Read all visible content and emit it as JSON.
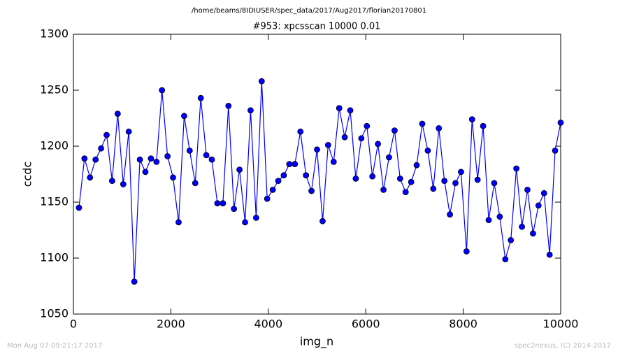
{
  "chart_data": {
    "type": "line",
    "suptitle": "/home/beams/8IDIUSER/spec_data/2017/Aug2017/florian20170801",
    "title": "#953: xpcsscan 10000 0.01",
    "xlabel": "img_n",
    "ylabel": "ccdc",
    "footer_left": "Mon Aug 07 09:21:17 2017",
    "footer_right": "spec2nexus, (C) 2014-2017",
    "x": [
      114,
      227,
      341,
      455,
      568,
      682,
      795,
      909,
      1023,
      1136,
      1250,
      1364,
      1477,
      1591,
      1705,
      1818,
      1932,
      2045,
      2159,
      2273,
      2386,
      2500,
      2614,
      2727,
      2841,
      2955,
      3068,
      3182,
      3295,
      3409,
      3523,
      3636,
      3750,
      3864,
      3977,
      4091,
      4205,
      4318,
      4432,
      4545,
      4659,
      4773,
      4886,
      5000,
      5114,
      5227,
      5341,
      5455,
      5568,
      5682,
      5795,
      5909,
      6023,
      6136,
      6250,
      6364,
      6477,
      6591,
      6705,
      6818,
      6932,
      7045,
      7159,
      7273,
      7386,
      7500,
      7614,
      7727,
      7841,
      7955,
      8068,
      8182,
      8295,
      8409,
      8523,
      8636,
      8750,
      8864,
      8977,
      9091,
      9205,
      9318,
      9432,
      9545,
      9659,
      9773,
      9886,
      10000
    ],
    "series": [
      {
        "name": "ccdc",
        "color": "#0000ff",
        "values": [
          1145,
          1189,
          1172,
          1188,
          1198,
          1210,
          1169,
          1229,
          1166,
          1213,
          1079,
          1188,
          1177,
          1189,
          1186,
          1250,
          1191,
          1172,
          1132,
          1227,
          1196,
          1167,
          1243,
          1192,
          1188,
          1149,
          1149,
          1236,
          1144,
          1179,
          1132,
          1232,
          1136,
          1258,
          1153,
          1161,
          1169,
          1174,
          1184,
          1184,
          1213,
          1174,
          1160,
          1197,
          1133,
          1201,
          1186,
          1234,
          1208,
          1232,
          1171,
          1207,
          1218,
          1173,
          1202,
          1161,
          1190,
          1214,
          1171,
          1159,
          1168,
          1183,
          1220,
          1196,
          1162,
          1216,
          1169,
          1139,
          1167,
          1177,
          1106,
          1224,
          1170,
          1218,
          1134,
          1167,
          1137,
          1099,
          1116,
          1180,
          1128,
          1161,
          1122,
          1147,
          1158,
          1103,
          1196,
          1221
        ]
      }
    ],
    "xlim": [
      0,
      10000
    ],
    "xticks": [
      0,
      2000,
      4000,
      6000,
      8000,
      10000
    ],
    "ylim": [
      1050,
      1300
    ],
    "yticks": [
      1050,
      1100,
      1150,
      1200,
      1250,
      1300
    ],
    "grid": false
  }
}
